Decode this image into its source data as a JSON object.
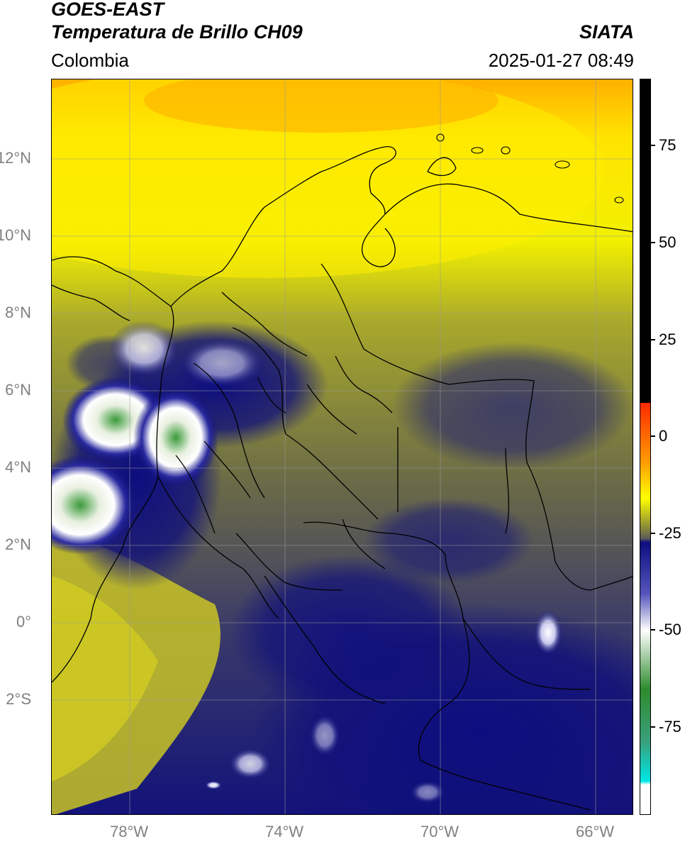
{
  "header": {
    "satellite": "GOES-EAST",
    "product": "Temperatura de Brillo CH09",
    "brand": "SIATA",
    "region": "Colombia",
    "datetime": "2025-01-27 08:49"
  },
  "map": {
    "lat_ticks": [
      "12°N",
      "10°N",
      "8°N",
      "6°N",
      "4°N",
      "2°N",
      "0°",
      "2°S"
    ],
    "lon_ticks": [
      "78°W",
      "74°W",
      "70°W",
      "66°W"
    ]
  },
  "colorbar": {
    "ticks": [
      "75",
      "50",
      "25",
      "0",
      "-25",
      "-50",
      "-75"
    ],
    "colors": {
      "black": "#000000",
      "red": "#ff2a00",
      "orange": "#ff9a00",
      "yellow": "#ffff00",
      "olive": "#8a8a3a",
      "gray": "#5a5a5a",
      "navy": "#0d0d80",
      "white": "#ffffff",
      "green": "#2e8b2e",
      "cyan": "#00e5e5"
    }
  }
}
